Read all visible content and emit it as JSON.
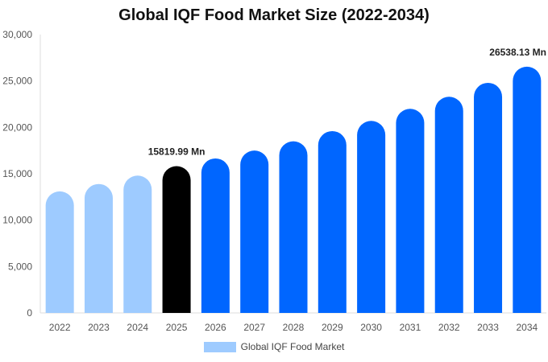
{
  "chart_data": {
    "type": "bar",
    "title": "Global IQF Food Market Size (2022-2034)",
    "xlabel": "",
    "ylabel": "",
    "ylim": [
      0,
      30000
    ],
    "yticks": [
      0,
      5000,
      10000,
      15000,
      20000,
      25000,
      30000
    ],
    "ytick_labels": [
      "0",
      "5,000",
      "10,000",
      "15,000",
      "20,000",
      "25,000",
      "30,000"
    ],
    "categories": [
      "2022",
      "2023",
      "2024",
      "2025",
      "2026",
      "2027",
      "2028",
      "2029",
      "2030",
      "2031",
      "2032",
      "2033",
      "2034"
    ],
    "values": [
      13100,
      13900,
      14800,
      15819.99,
      16650,
      17500,
      18500,
      19600,
      20700,
      22000,
      23300,
      24800,
      26538.13
    ],
    "bar_colors": [
      "#9ecbff",
      "#9ecbff",
      "#9ecbff",
      "#000000",
      "#0066ff",
      "#0066ff",
      "#0066ff",
      "#0066ff",
      "#0066ff",
      "#0066ff",
      "#0066ff",
      "#0066ff",
      "#0066ff"
    ],
    "data_labels": [
      {
        "index": 3,
        "text": "15819.99 Mn"
      },
      {
        "index": 12,
        "text": "26538.13 Mn"
      }
    ],
    "grid": false,
    "legend": {
      "position": "bottom",
      "label": "Global IQF Food Market",
      "color": "#9ecbff"
    }
  }
}
